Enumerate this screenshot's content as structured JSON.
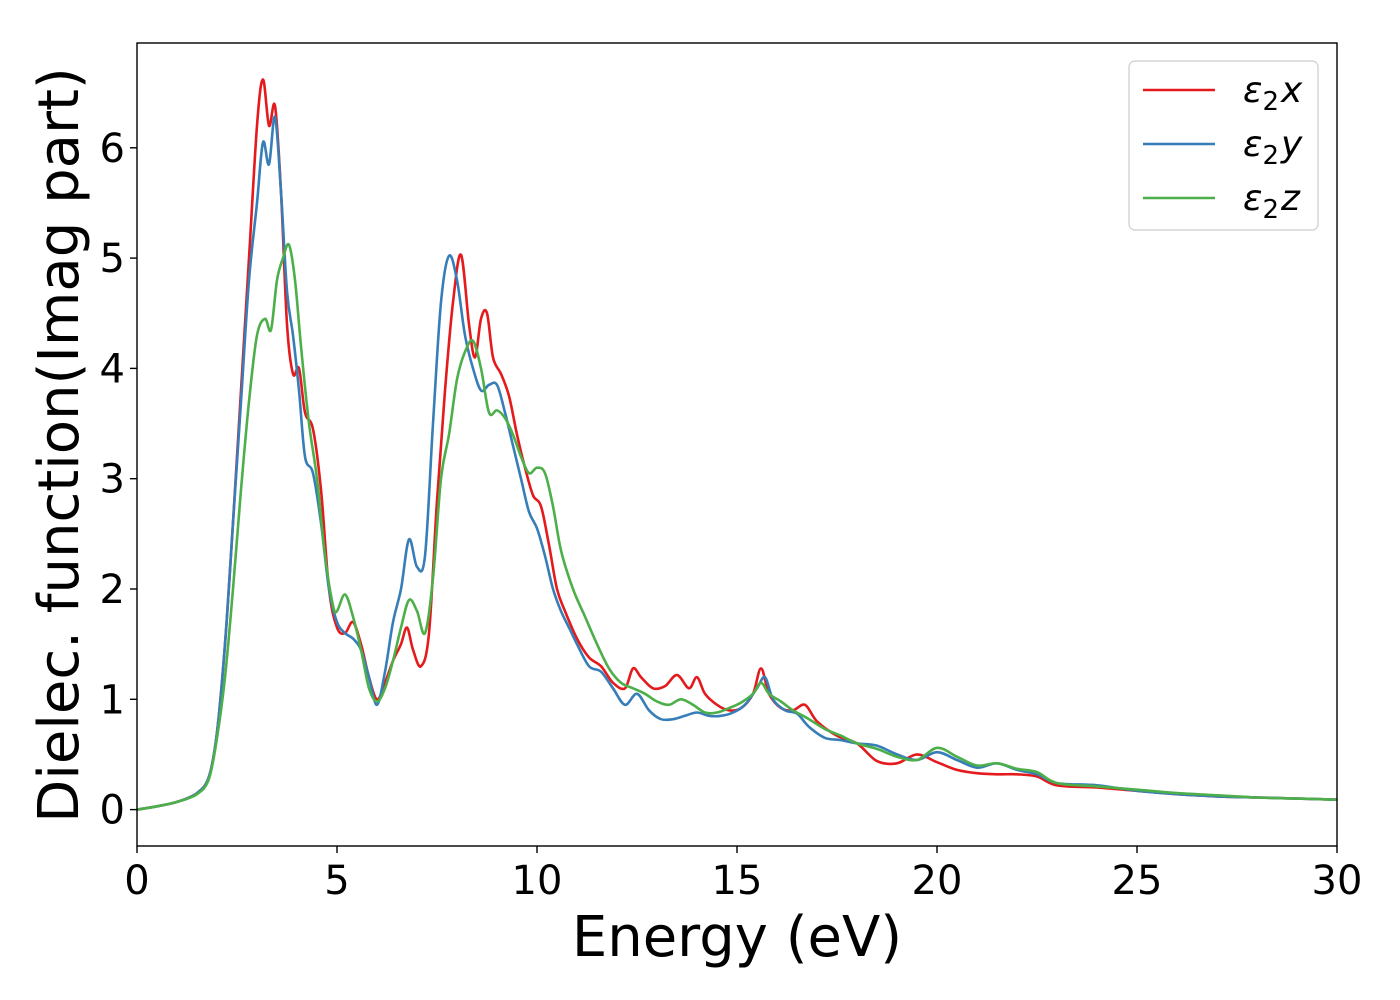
{
  "chart_data": {
    "type": "line",
    "xlabel": "Energy (eV)",
    "ylabel": "Dielec. function(Imag part)",
    "xlim": [
      0,
      30
    ],
    "ylim": [
      -0.33,
      6.95
    ],
    "xticks": [
      0,
      5,
      10,
      15,
      20,
      25,
      30
    ],
    "yticks": [
      0,
      1,
      2,
      3,
      4,
      5,
      6
    ],
    "grid": false,
    "legend_position": "top-right",
    "series": [
      {
        "name": "ε2x",
        "legend_main": "ε",
        "legend_sub": "2",
        "legend_suffix": "x",
        "color": "#e41a1c",
        "x": [
          0,
          0.5,
          1.0,
          1.5,
          1.8,
          2.0,
          2.2,
          2.4,
          2.6,
          2.8,
          3.0,
          3.15,
          3.3,
          3.45,
          3.6,
          3.75,
          3.9,
          4.05,
          4.2,
          4.4,
          4.6,
          4.8,
          5.0,
          5.2,
          5.4,
          5.6,
          5.8,
          6.0,
          6.2,
          6.4,
          6.6,
          6.75,
          6.9,
          7.1,
          7.3,
          7.5,
          7.7,
          7.9,
          8.1,
          8.3,
          8.45,
          8.6,
          8.75,
          8.9,
          9.1,
          9.3,
          9.5,
          9.7,
          9.9,
          10.1,
          10.3,
          10.5,
          10.7,
          11.0,
          11.3,
          11.6,
          11.9,
          12.2,
          12.4,
          12.6,
          12.9,
          13.2,
          13.5,
          13.8,
          14.0,
          14.2,
          14.5,
          14.8,
          15.1,
          15.4,
          15.6,
          15.8,
          16.1,
          16.4,
          16.7,
          17.0,
          17.5,
          18.0,
          18.5,
          19.0,
          19.5,
          20.0,
          20.5,
          21.0,
          21.5,
          22.0,
          22.5,
          23.0,
          24.0,
          25.0,
          26.0,
          27.0,
          28.0,
          29.0,
          30.0
        ],
        "y": [
          0.0,
          0.03,
          0.07,
          0.15,
          0.3,
          0.7,
          1.5,
          2.6,
          3.8,
          5.0,
          6.2,
          6.62,
          6.2,
          6.38,
          5.6,
          4.4,
          3.95,
          4.0,
          3.6,
          3.45,
          2.9,
          2.0,
          1.65,
          1.6,
          1.7,
          1.5,
          1.2,
          1.0,
          1.15,
          1.35,
          1.5,
          1.65,
          1.45,
          1.3,
          1.6,
          2.8,
          3.8,
          4.6,
          5.03,
          4.4,
          4.1,
          4.45,
          4.5,
          4.1,
          3.95,
          3.75,
          3.4,
          3.1,
          2.85,
          2.75,
          2.4,
          2.0,
          1.8,
          1.55,
          1.38,
          1.3,
          1.15,
          1.1,
          1.28,
          1.2,
          1.1,
          1.12,
          1.22,
          1.1,
          1.2,
          1.05,
          0.95,
          0.9,
          0.92,
          1.05,
          1.28,
          1.05,
          0.92,
          0.9,
          0.95,
          0.8,
          0.67,
          0.6,
          0.44,
          0.42,
          0.5,
          0.43,
          0.36,
          0.33,
          0.32,
          0.32,
          0.3,
          0.22,
          0.2,
          0.17,
          0.14,
          0.12,
          0.11,
          0.1,
          0.09
        ]
      },
      {
        "name": "ε2y",
        "legend_main": "ε",
        "legend_sub": "2",
        "legend_suffix": "y",
        "color": "#377eb8",
        "x": [
          0,
          0.5,
          1.0,
          1.5,
          1.8,
          2.0,
          2.2,
          2.4,
          2.6,
          2.8,
          3.0,
          3.15,
          3.3,
          3.45,
          3.6,
          3.75,
          3.9,
          4.05,
          4.2,
          4.4,
          4.6,
          4.8,
          5.0,
          5.2,
          5.4,
          5.6,
          5.8,
          6.0,
          6.2,
          6.4,
          6.6,
          6.8,
          7.0,
          7.2,
          7.4,
          7.6,
          7.8,
          8.0,
          8.2,
          8.4,
          8.6,
          8.8,
          9.0,
          9.2,
          9.4,
          9.6,
          9.8,
          10.0,
          10.2,
          10.4,
          10.6,
          10.8,
          11.0,
          11.3,
          11.6,
          11.9,
          12.2,
          12.5,
          12.8,
          13.1,
          13.4,
          13.7,
          14.0,
          14.3,
          14.6,
          14.9,
          15.2,
          15.5,
          15.7,
          15.9,
          16.2,
          16.5,
          16.8,
          17.2,
          17.6,
          18.0,
          18.5,
          19.0,
          19.5,
          20.0,
          20.5,
          21.0,
          21.5,
          22.0,
          22.5,
          23.0,
          24.0,
          25.0,
          26.0,
          27.0,
          28.0,
          29.0,
          30.0
        ],
        "y": [
          0.0,
          0.03,
          0.07,
          0.15,
          0.3,
          0.7,
          1.5,
          2.6,
          3.7,
          4.8,
          5.5,
          6.05,
          5.85,
          6.28,
          5.6,
          4.7,
          4.3,
          3.8,
          3.2,
          3.05,
          2.6,
          2.0,
          1.7,
          1.6,
          1.55,
          1.45,
          1.2,
          0.95,
          1.25,
          1.7,
          2.0,
          2.45,
          2.2,
          2.3,
          3.5,
          4.6,
          5.02,
          4.8,
          4.3,
          4.0,
          3.8,
          3.85,
          3.85,
          3.6,
          3.3,
          3.0,
          2.7,
          2.55,
          2.3,
          2.0,
          1.8,
          1.65,
          1.5,
          1.3,
          1.25,
          1.1,
          0.95,
          1.05,
          0.9,
          0.82,
          0.82,
          0.85,
          0.88,
          0.85,
          0.85,
          0.88,
          0.95,
          1.1,
          1.2,
          1.0,
          0.9,
          0.87,
          0.75,
          0.65,
          0.63,
          0.6,
          0.58,
          0.5,
          0.45,
          0.52,
          0.45,
          0.38,
          0.42,
          0.36,
          0.32,
          0.24,
          0.22,
          0.17,
          0.14,
          0.12,
          0.11,
          0.1,
          0.09
        ]
      },
      {
        "name": "ε2z",
        "legend_main": "ε",
        "legend_sub": "2",
        "legend_suffix": "z",
        "color": "#4daf4a",
        "x": [
          0,
          0.5,
          1.0,
          1.5,
          1.8,
          2.0,
          2.2,
          2.4,
          2.6,
          2.8,
          3.0,
          3.2,
          3.35,
          3.5,
          3.65,
          3.8,
          3.95,
          4.1,
          4.3,
          4.5,
          4.7,
          4.9,
          5.0,
          5.2,
          5.4,
          5.6,
          5.8,
          6.0,
          6.2,
          6.4,
          6.6,
          6.8,
          7.0,
          7.2,
          7.4,
          7.6,
          7.8,
          8.0,
          8.2,
          8.4,
          8.6,
          8.8,
          9.0,
          9.2,
          9.4,
          9.6,
          9.8,
          10.0,
          10.2,
          10.4,
          10.6,
          10.9,
          11.2,
          11.5,
          11.8,
          12.1,
          12.4,
          12.7,
          13.0,
          13.3,
          13.6,
          13.9,
          14.2,
          14.5,
          14.8,
          15.1,
          15.4,
          15.6,
          15.8,
          16.1,
          16.4,
          16.8,
          17.2,
          17.6,
          18.0,
          18.5,
          19.0,
          19.5,
          20.0,
          20.5,
          21.0,
          21.5,
          22.0,
          22.5,
          23.0,
          24.0,
          25.0,
          26.0,
          27.0,
          28.0,
          29.0,
          30.0
        ],
        "y": [
          0.0,
          0.03,
          0.07,
          0.14,
          0.28,
          0.65,
          1.2,
          2.0,
          2.9,
          3.7,
          4.3,
          4.45,
          4.35,
          4.8,
          5.0,
          5.12,
          4.8,
          4.2,
          3.5,
          3.0,
          2.3,
          1.85,
          1.8,
          1.95,
          1.75,
          1.45,
          1.1,
          0.98,
          1.1,
          1.35,
          1.65,
          1.9,
          1.8,
          1.6,
          2.1,
          3.0,
          3.4,
          3.9,
          4.15,
          4.25,
          4.0,
          3.6,
          3.62,
          3.55,
          3.4,
          3.2,
          3.05,
          3.1,
          3.05,
          2.75,
          2.35,
          2.0,
          1.75,
          1.5,
          1.28,
          1.15,
          1.1,
          1.05,
          0.98,
          0.95,
          1.0,
          0.95,
          0.88,
          0.88,
          0.92,
          0.97,
          1.05,
          1.15,
          1.05,
          0.98,
          0.9,
          0.82,
          0.73,
          0.67,
          0.6,
          0.55,
          0.48,
          0.45,
          0.56,
          0.48,
          0.4,
          0.42,
          0.37,
          0.34,
          0.24,
          0.21,
          0.18,
          0.15,
          0.13,
          0.11,
          0.1,
          0.09
        ]
      }
    ]
  }
}
